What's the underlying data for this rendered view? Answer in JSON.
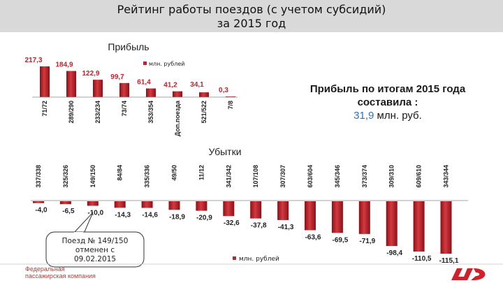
{
  "title_line1": "Рейтинг работы поездов (с учетом субсидий)",
  "title_line2": "за 2015 год",
  "summary": {
    "line1": "Прибыль по итогам 2015 года",
    "line2": "составила :",
    "value": "31,9",
    "unit": "млн. руб."
  },
  "callout": {
    "line1": "Поезд № 149/150",
    "line2": "отменен с",
    "line3": "09.02.2015"
  },
  "footer": {
    "company_line1": "Федеральная",
    "company_line2": "пассажирская компания"
  },
  "colors": {
    "bar": "#c0232c",
    "bar_dark": "#8e1016",
    "summary_value": "#2f75b5",
    "title_band": "#d9d9d9"
  },
  "icons": [
    "rzd-logo-icon"
  ],
  "chart_data": [
    {
      "type": "bar",
      "title": "Прибыль",
      "legend": "млн. рублей",
      "legend_position": "top",
      "categories": [
        "71/72",
        "289/290",
        "233/234",
        "73/74",
        "353/354",
        "Доп.поезда",
        "521/522",
        "7/8"
      ],
      "values": [
        217.3,
        184.9,
        122.9,
        99.7,
        61.4,
        41.2,
        34.1,
        0.3
      ],
      "labels": [
        "217,3",
        "184,9",
        "122,9",
        "99,7",
        "61,4",
        "41,2",
        "34,1",
        "0,3"
      ],
      "ylim": [
        0,
        217.3
      ],
      "grid": false
    },
    {
      "type": "bar",
      "title": "Убытки",
      "legend": "млн. рублей",
      "legend_position": "bottom",
      "categories": [
        "337/338",
        "325/326",
        "149/150",
        "84/84",
        "335/336",
        "49/50",
        "11/12",
        "341/342",
        "107/108",
        "307/307",
        "603/604",
        "345/346",
        "373/374",
        "309/310",
        "609/610",
        "343/344"
      ],
      "values": [
        -4.0,
        -6.5,
        -10.0,
        -14.3,
        -14.6,
        -18.9,
        -20.9,
        -32.6,
        -37.8,
        -41.3,
        -63.6,
        -69.5,
        -71.9,
        -98.4,
        -110.5,
        -115.1
      ],
      "labels": [
        "-4,0",
        "-6,5",
        "-10,0",
        "-14,3",
        "-14,6",
        "-18,9",
        "-20,9",
        "-32,6",
        "-37,8",
        "-41,3",
        "-63,6",
        "-69,5",
        "-71,9",
        "-98,4",
        "-110,5",
        "-115,1"
      ],
      "ylim": [
        -115.1,
        0
      ],
      "grid": false
    }
  ]
}
